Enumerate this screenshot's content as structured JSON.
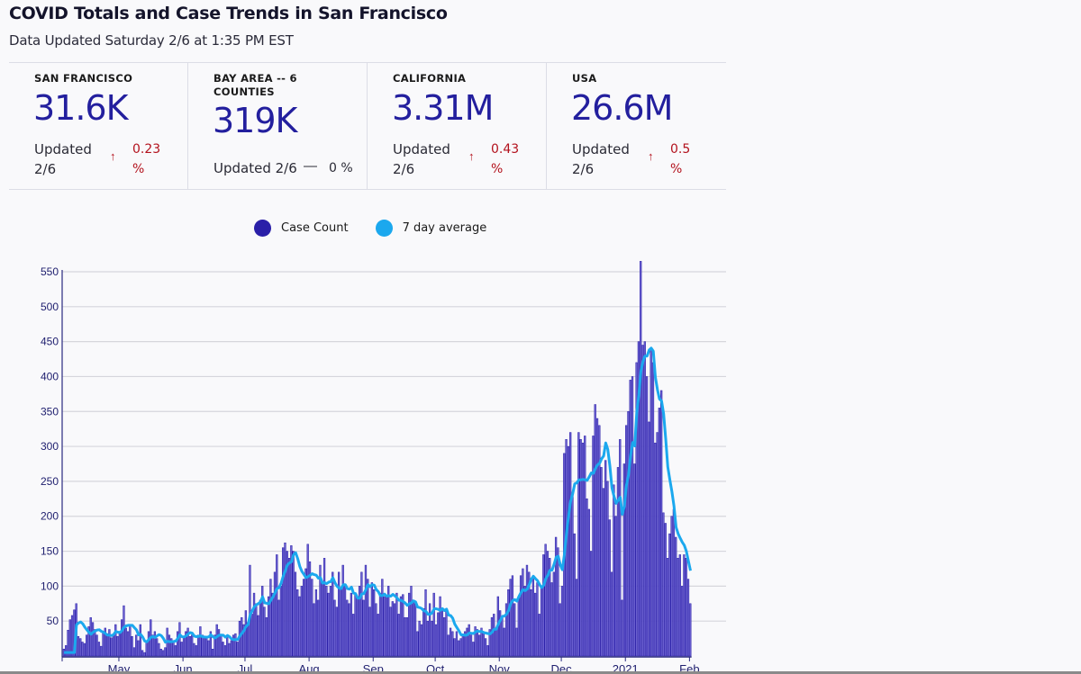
{
  "header": {
    "title": "COVID Totals and Case Trends in San Francisco",
    "subtitle": "Data Updated Saturday 2/6 at 1:35 PM EST"
  },
  "stats": [
    {
      "label": "SAN FRANCISCO",
      "value": "31.6K",
      "updated": "Updated 2/6",
      "trend": "up",
      "trend_icon": "arrow-up-icon",
      "arrow": "↑",
      "change": "0.23 %"
    },
    {
      "label": "BAY AREA -- 6 COUNTIES",
      "value": "319K",
      "updated": "Updated 2/6",
      "trend": "flat",
      "trend_icon": "dash-icon",
      "arrow": "—",
      "change": "0 %"
    },
    {
      "label": "CALIFORNIA",
      "value": "3.31M",
      "updated": "Updated 2/6",
      "trend": "up",
      "trend_icon": "arrow-up-icon",
      "arrow": "↑",
      "change": "0.43 %"
    },
    {
      "label": "USA",
      "value": "26.6M",
      "updated": "Updated 2/6",
      "trend": "up",
      "trend_icon": "arrow-up-icon",
      "arrow": "↑",
      "change": "0.5 %"
    }
  ],
  "colors": {
    "case_count": "#2a1fa8",
    "bar_fill": "#6a5fd0",
    "seven_day": "#1ba8ee",
    "trend_up": "#b3121d",
    "value": "#231f9e"
  },
  "chart_data": {
    "type": "bar",
    "title": "",
    "xlabel": "",
    "ylabel": "",
    "ylim": [
      0,
      560
    ],
    "yticks": [
      50,
      100,
      150,
      200,
      250,
      300,
      350,
      400,
      450,
      500,
      550
    ],
    "grid": true,
    "legend": {
      "placement": "top-center",
      "entries": [
        "Case Count",
        "7 day average"
      ]
    },
    "x_start": "2020-04-04",
    "xticks": [
      {
        "label": "May",
        "date": "2020-05-01"
      },
      {
        "label": "Jun",
        "date": "2020-06-01"
      },
      {
        "label": "Jul",
        "date": "2020-07-01"
      },
      {
        "label": "Aug",
        "date": "2020-08-01"
      },
      {
        "label": "Sep",
        "date": "2020-09-01"
      },
      {
        "label": "Oct",
        "date": "2020-10-01"
      },
      {
        "label": "Nov",
        "date": "2020-11-01"
      },
      {
        "label": "Dec",
        "date": "2020-12-01"
      },
      {
        "label": "2021",
        "date": "2021-01-01"
      },
      {
        "label": "Feb",
        "date": "2021-02-01"
      }
    ],
    "series": [
      {
        "name": "Case Count",
        "type": "bar",
        "values": [
          10,
          15,
          37,
          52,
          58,
          66,
          75,
          28,
          25,
          20,
          18,
          30,
          42,
          55,
          48,
          38,
          30,
          20,
          14,
          35,
          40,
          32,
          38,
          26,
          30,
          45,
          28,
          35,
          52,
          72,
          40,
          35,
          45,
          28,
          12,
          30,
          22,
          45,
          8,
          5,
          20,
          35,
          52,
          30,
          35,
          25,
          18,
          10,
          8,
          12,
          40,
          30,
          25,
          20,
          15,
          35,
          48,
          20,
          28,
          35,
          40,
          28,
          30,
          18,
          15,
          30,
          42,
          30,
          25,
          28,
          22,
          35,
          10,
          30,
          45,
          38,
          30,
          20,
          15,
          28,
          18,
          22,
          30,
          32,
          20,
          50,
          55,
          45,
          65,
          48,
          130,
          60,
          90,
          75,
          58,
          80,
          100,
          70,
          55,
          85,
          110,
          90,
          120,
          145,
          80,
          100,
          155,
          162,
          150,
          140,
          158,
          150,
          120,
          95,
          85,
          100,
          110,
          125,
          160,
          135,
          110,
          75,
          95,
          80,
          130,
          105,
          140,
          100,
          90,
          100,
          120,
          80,
          70,
          120,
          95,
          130,
          100,
          80,
          75,
          90,
          60,
          90,
          85,
          100,
          120,
          80,
          130,
          110,
          70,
          105,
          95,
          75,
          60,
          90,
          110,
          85,
          85,
          100,
          70,
          78,
          75,
          90,
          60,
          85,
          88,
          55,
          55,
          90,
          100,
          80,
          75,
          35,
          50,
          45,
          68,
          95,
          50,
          75,
          50,
          90,
          45,
          62,
          85,
          68,
          55,
          65,
          30,
          40,
          35,
          25,
          35,
          22,
          25,
          30,
          35,
          40,
          45,
          30,
          20,
          42,
          38,
          30,
          40,
          35,
          25,
          15,
          38,
          55,
          60,
          40,
          85,
          65,
          55,
          40,
          75,
          95,
          110,
          115,
          75,
          40,
          85,
          115,
          125,
          100,
          130,
          120,
          95,
          115,
          90,
          105,
          60,
          100,
          145,
          160,
          150,
          140,
          105,
          120,
          170,
          155,
          75,
          100,
          290,
          310,
          300,
          320,
          230,
          175,
          110,
          320,
          310,
          305,
          315,
          225,
          210,
          150,
          315,
          360,
          340,
          330,
          270,
          240,
          280,
          250,
          195,
          120,
          245,
          200,
          270,
          310,
          80,
          275,
          330,
          350,
          395,
          400,
          275,
          420,
          450,
          565,
          445,
          450,
          400,
          335,
          440,
          420,
          305,
          320,
          355,
          380,
          205,
          190,
          140,
          175,
          200,
          210,
          170,
          140,
          145,
          100,
          145,
          140,
          110,
          75
        ]
      },
      {
        "name": "7 day average",
        "type": "line",
        "window": 7,
        "derived_from": "Case Count"
      }
    ]
  }
}
